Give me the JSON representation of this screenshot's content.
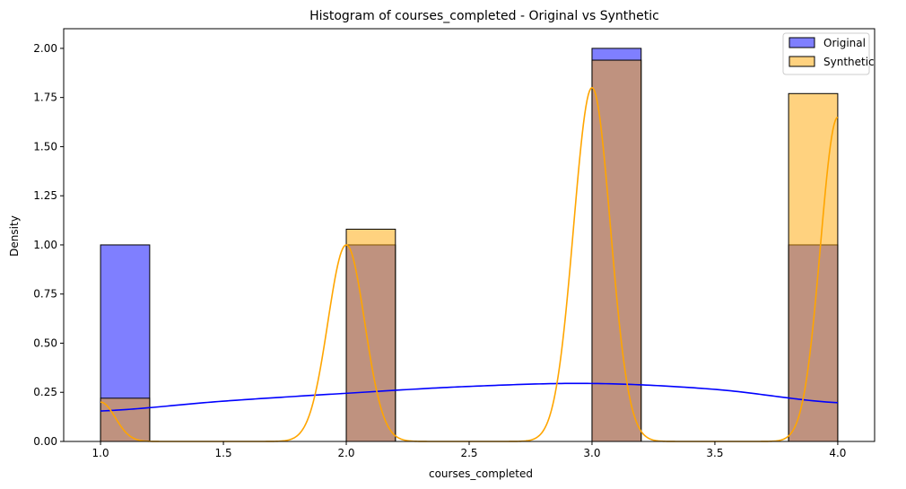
{
  "chart_data": {
    "type": "histogram",
    "title": "Histogram of courses_completed - Original vs Synthetic",
    "xlabel": "courses_completed",
    "ylabel": "Density",
    "xlim": [
      0.85,
      4.15
    ],
    "ylim": [
      0,
      2.1
    ],
    "xticks": [
      1.0,
      1.5,
      2.0,
      2.5,
      3.0,
      3.5,
      4.0
    ],
    "xtick_labels": [
      "1.0",
      "1.5",
      "2.0",
      "2.5",
      "3.0",
      "3.5",
      "4.0"
    ],
    "yticks": [
      0,
      0.25,
      0.5,
      0.75,
      1.0,
      1.25,
      1.5,
      1.75,
      2.0
    ],
    "ytick_labels": [
      "0.00",
      "0.25",
      "0.50",
      "0.75",
      "1.00",
      "1.25",
      "1.50",
      "1.75",
      "2.00"
    ],
    "legend_position": "top-right",
    "series": [
      {
        "name": "Original",
        "color": "#0000ff",
        "bins": [
          {
            "x0": 1.0,
            "x1": 1.2,
            "value": 1.0
          },
          {
            "x0": 2.0,
            "x1": 2.2,
            "value": 1.0
          },
          {
            "x0": 3.0,
            "x1": 3.2,
            "value": 2.0
          },
          {
            "x0": 3.8,
            "x1": 4.0,
            "value": 1.0
          }
        ],
        "kde": {
          "x": [
            1.0,
            1.5,
            2.0,
            2.5,
            3.0,
            3.5,
            4.0
          ],
          "y": [
            0.155,
            0.205,
            0.245,
            0.28,
            0.295,
            0.265,
            0.197
          ]
        }
      },
      {
        "name": "Synthetic",
        "color": "#ffa500",
        "bins": [
          {
            "x0": 1.0,
            "x1": 1.2,
            "value": 0.22
          },
          {
            "x0": 2.0,
            "x1": 2.2,
            "value": 1.08
          },
          {
            "x0": 3.0,
            "x1": 3.2,
            "value": 1.94
          },
          {
            "x0": 3.8,
            "x1": 4.0,
            "value": 1.77
          }
        ],
        "kde": {
          "components": [
            {
              "mu": 1.0,
              "sigma": 0.06,
              "amp": 0.2
            },
            {
              "mu": 2.0,
              "sigma": 0.075,
              "amp": 1.0
            },
            {
              "mu": 3.0,
              "sigma": 0.075,
              "amp": 1.8
            },
            {
              "mu": 4.0,
              "sigma": 0.07,
              "amp": 1.65
            }
          ],
          "x_range": [
            1.0,
            4.0
          ]
        }
      }
    ]
  }
}
